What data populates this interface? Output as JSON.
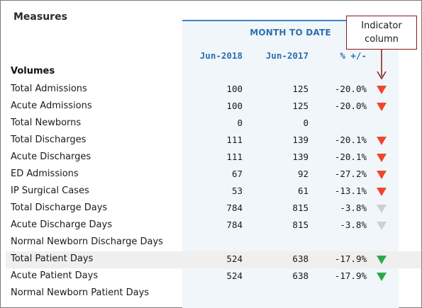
{
  "title": "Measures",
  "period_label": "MONTH TO DATE",
  "columns": {
    "current": "Jun-2018",
    "prior": "Jun-2017",
    "pct": "% +/-"
  },
  "section": "Volumes",
  "callout": {
    "line1": "Indicator",
    "line2": "column"
  },
  "colors": {
    "accent_blue": "#2e6fae",
    "down_red": "#f0462b",
    "neutral_gray": "#cfcfcf",
    "up_green": "#2ca84a",
    "callout_border": "#8b1a1a"
  },
  "rows": [
    {
      "label": "Total Admissions",
      "current": "100",
      "prior": "125",
      "pct": "-20.0%",
      "indicator": "down-red",
      "highlight": false
    },
    {
      "label": "Acute Admissions",
      "current": "100",
      "prior": "125",
      "pct": "-20.0%",
      "indicator": "down-red",
      "highlight": false
    },
    {
      "label": "Total Newborns",
      "current": "0",
      "prior": "0",
      "pct": "",
      "indicator": "none",
      "highlight": false
    },
    {
      "label": "Total Discharges",
      "current": "111",
      "prior": "139",
      "pct": "-20.1%",
      "indicator": "down-red",
      "highlight": false
    },
    {
      "label": "Acute Discharges",
      "current": "111",
      "prior": "139",
      "pct": "-20.1%",
      "indicator": "down-red",
      "highlight": false
    },
    {
      "label": "ED Admissions",
      "current": "67",
      "prior": "92",
      "pct": "-27.2%",
      "indicator": "down-red",
      "highlight": false
    },
    {
      "label": "IP Surgical Cases",
      "current": "53",
      "prior": "61",
      "pct": "-13.1%",
      "indicator": "down-red",
      "highlight": false
    },
    {
      "label": "Total Discharge Days",
      "current": "784",
      "prior": "815",
      "pct": "-3.8%",
      "indicator": "down-gray",
      "highlight": false
    },
    {
      "label": "Acute Discharge Days",
      "current": "784",
      "prior": "815",
      "pct": "-3.8%",
      "indicator": "down-gray",
      "highlight": false
    },
    {
      "label": "Normal Newborn Discharge Days",
      "current": "",
      "prior": "",
      "pct": "",
      "indicator": "none",
      "highlight": false
    },
    {
      "label": "Total Patient Days",
      "current": "524",
      "prior": "638",
      "pct": "-17.9%",
      "indicator": "down-green",
      "highlight": true
    },
    {
      "label": "Acute Patient Days",
      "current": "524",
      "prior": "638",
      "pct": "-17.9%",
      "indicator": "down-green",
      "highlight": false
    },
    {
      "label": "Normal Newborn Patient Days",
      "current": "",
      "prior": "",
      "pct": "",
      "indicator": "none",
      "highlight": false
    }
  ]
}
